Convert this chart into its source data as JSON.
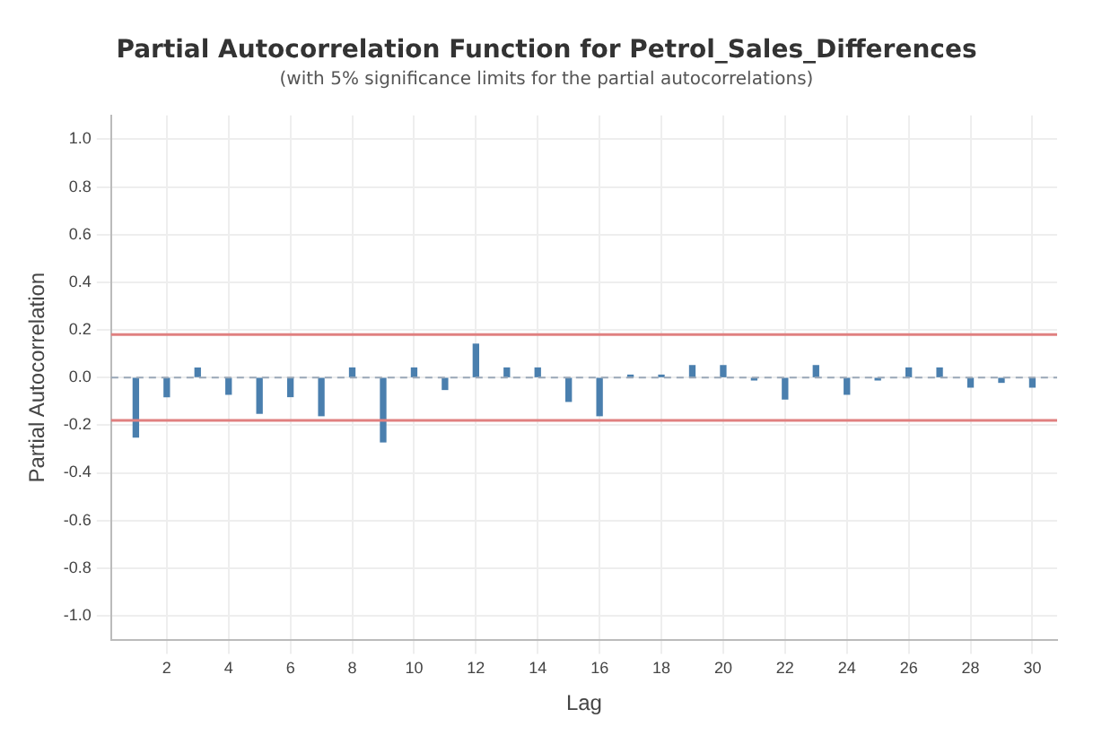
{
  "chart_data": {
    "type": "bar",
    "title": "Partial Autocorrelation Function for Petrol_Sales_Differences",
    "subtitle": "(with 5% significance limits for the partial autocorrelations)",
    "xlabel": "Lag",
    "ylabel": "Partial Autocorrelation",
    "x": [
      1,
      2,
      3,
      4,
      5,
      6,
      7,
      8,
      9,
      10,
      11,
      12,
      13,
      14,
      15,
      16,
      17,
      18,
      19,
      20,
      21,
      22,
      23,
      24,
      25,
      26,
      27,
      28,
      29,
      30
    ],
    "series": [
      {
        "color": "#4a7fae",
        "values": [
          -0.25,
          -0.08,
          0.04,
          -0.07,
          -0.15,
          -0.08,
          -0.16,
          0.04,
          -0.27,
          0.04,
          -0.05,
          0.14,
          0.04,
          0.04,
          -0.1,
          -0.16,
          0.01,
          0.01,
          0.05,
          0.05,
          -0.01,
          -0.09,
          0.05,
          -0.07,
          -0.01,
          0.04,
          0.04,
          -0.04,
          -0.02,
          -0.04
        ]
      }
    ],
    "xlim": [
      0.2,
      30.8
    ],
    "xticks": [
      2,
      4,
      6,
      8,
      10,
      12,
      14,
      16,
      18,
      20,
      22,
      24,
      26,
      28,
      30
    ],
    "ylim": [
      -1.1,
      1.1
    ],
    "yticks": [
      {
        "value": -1,
        "label": "-1.0"
      },
      {
        "value": -0.8,
        "label": "-0.8"
      },
      {
        "value": -0.6,
        "label": "-0.6"
      },
      {
        "value": -0.4,
        "label": "-0.4"
      },
      {
        "value": -0.2,
        "label": "-0.2"
      },
      {
        "value": 0,
        "label": "0.0"
      },
      {
        "value": 0.2,
        "label": "0.2"
      },
      {
        "value": 0.4,
        "label": "0.4"
      },
      {
        "value": 0.6,
        "label": "0.6"
      },
      {
        "value": 0.8,
        "label": "0.8"
      },
      {
        "value": 1,
        "label": "1.0"
      }
    ],
    "ref_lines": [
      {
        "axis": "y",
        "value": 0.18,
        "color": "#e08080"
      },
      {
        "axis": "y",
        "value": -0.18,
        "color": "#e08080"
      },
      {
        "axis": "y",
        "value": 0,
        "color": "#9aa8b8",
        "line_style": "dashed"
      }
    ],
    "grid": true,
    "legend": false
  }
}
